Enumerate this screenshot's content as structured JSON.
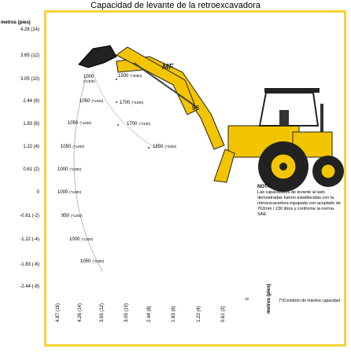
{
  "title": "Capacidad de levante de la retroexcavadora",
  "y_axis": {
    "unit_label": "metros (pies)",
    "ticks": [
      "4.26 (14)",
      "3.65 (12)",
      "3.05 (10)",
      "2.44 (8)",
      "1.83 (6)",
      "1.22 (4)",
      "0.61 (2)",
      "0",
      "-0.61 (-2)",
      "-1.22 (-4)",
      "-1.83 (-6)",
      "-2.44 (-8)"
    ]
  },
  "x_axis": {
    "unit_label": "metros (pies)",
    "ticks": [
      "4.87 (16)",
      "4.26 (14)",
      "3.65 (12)",
      "3.05 (10)",
      "2.44 (8)",
      "1.83 (6)",
      "1.22 (4)",
      "0.61 (2)",
      "0"
    ]
  },
  "capacities": [
    {
      "value": "1000",
      "rated": "(*1300)"
    },
    {
      "value": "1500",
      "rated": "(*3050)"
    },
    {
      "value": "1050",
      "rated": "(*1400)"
    },
    {
      "value": "1700",
      "rated": "(*2100)"
    },
    {
      "value": "1050",
      "rated": "(*1400)"
    },
    {
      "value": "1700",
      "rated": "(*2100)"
    },
    {
      "value": "1050",
      "rated": "(*1400)"
    },
    {
      "value": "1850",
      "rated": "(*2300)"
    },
    {
      "value": "1000",
      "rated": "(*1300)"
    },
    {
      "value": "1000",
      "rated": "(*1300)"
    },
    {
      "value": "950",
      "rated": "(*1250)"
    },
    {
      "value": "1000",
      "rated": "(*1300)"
    },
    {
      "value": "1050",
      "rated": "(*1300)"
    }
  ],
  "note": {
    "heading": "NOTA:",
    "body": "Las capacidades de levante al lado demostradas fueron establecidas con la retroexcavadora equipada con acoplado de 762mm / 230 litros y conforme la norma SAE."
  },
  "footnote": "(*)Condición de máxima capacidad",
  "machine": {
    "arm_text_1": "MF",
    "arm_text_2": "96"
  },
  "colors": {
    "frame": "#f4d23a",
    "machine_yellow": "#f3c400",
    "bucket": "#222222"
  }
}
